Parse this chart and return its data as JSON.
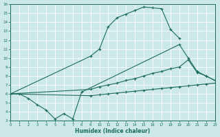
{
  "bg_color": "#cce8e8",
  "line_color": "#1a6b5a",
  "xlabel": "Humidex (Indice chaleur)",
  "xlim": [
    0,
    23
  ],
  "ylim": [
    3,
    16
  ],
  "xticks": [
    0,
    1,
    2,
    3,
    4,
    5,
    6,
    7,
    8,
    9,
    10,
    11,
    12,
    13,
    14,
    15,
    16,
    17,
    18,
    19,
    20,
    21,
    22,
    23
  ],
  "yticks": [
    3,
    4,
    5,
    6,
    7,
    8,
    9,
    10,
    11,
    12,
    13,
    14,
    15,
    16
  ],
  "series": [
    {
      "x": [
        0,
        1,
        2,
        3,
        4,
        5,
        6,
        7,
        8,
        19,
        20,
        21,
        22,
        23
      ],
      "y": [
        6,
        6,
        5.5,
        4.8,
        4.2,
        3.2,
        3.8,
        3.2,
        6.2,
        11.5,
        10.0,
        8.5,
        8.0,
        7.5
      ]
    },
    {
      "x": [
        0,
        9,
        10,
        11,
        12,
        13,
        14,
        15,
        16,
        17,
        18,
        19
      ],
      "y": [
        6,
        10.2,
        11.0,
        13.5,
        14.5,
        14.9,
        15.3,
        15.7,
        15.6,
        15.5,
        13.2,
        12.2
      ]
    },
    {
      "x": [
        0,
        9,
        10,
        11,
        12,
        13,
        14,
        15,
        16,
        17,
        18,
        19,
        20,
        21,
        22,
        23
      ],
      "y": [
        6,
        6.5,
        6.8,
        7.0,
        7.2,
        7.5,
        7.7,
        8.0,
        8.3,
        8.5,
        8.8,
        9.0,
        9.8,
        8.4,
        8.0,
        7.5
      ]
    },
    {
      "x": [
        0,
        9,
        10,
        11,
        12,
        13,
        14,
        15,
        16,
        17,
        18,
        19,
        20,
        21,
        22,
        23
      ],
      "y": [
        6,
        5.8,
        5.9,
        6.0,
        6.1,
        6.2,
        6.3,
        6.4,
        6.5,
        6.6,
        6.7,
        6.8,
        6.9,
        7.0,
        7.1,
        7.2
      ]
    }
  ]
}
